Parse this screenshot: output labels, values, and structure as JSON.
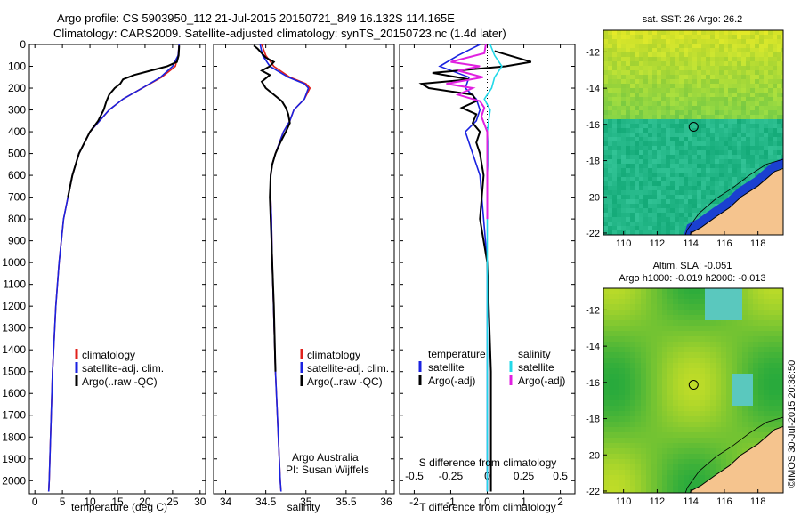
{
  "header": {
    "line1": "Argo profile: CS 5903950_112 21-Jul-2015 20150721_849 16.132S 114.165E",
    "line2": "Climatology: CARS2009. Satellite-adjusted climatology: synTS_20150723.nc (1.4d later)"
  },
  "colors": {
    "climatology": "#e0201b",
    "satellite": "#1a22e0",
    "argo": "#000000",
    "salinity_sat": "#22d8e8",
    "salinity_argo": "#e020e0",
    "land": "#f5c48e"
  },
  "chart_data": [
    {
      "type": "line",
      "name": "temperature-profile",
      "xlabel": "temperature (deg C)",
      "ylabel": "",
      "xlim": [
        -1,
        31
      ],
      "ylim": [
        2060,
        0
      ],
      "x_ticks": [
        "0",
        "5",
        "10",
        "15",
        "20",
        "25",
        "30"
      ],
      "y_ticks": [
        "0",
        "100",
        "200",
        "300",
        "400",
        "500",
        "600",
        "700",
        "800",
        "900",
        "1000",
        "1100",
        "1200",
        "1300",
        "1400",
        "1500",
        "1600",
        "1700",
        "1800",
        "1900",
        "2000"
      ],
      "legend": [
        "climatology",
        "satellite-adj. clim.",
        "Argo(..raw -QC)"
      ],
      "series": [
        {
          "name": "climatology",
          "depth": [
            0,
            50,
            100,
            150,
            200,
            250,
            300,
            400,
            500,
            600,
            800,
            1000,
            1200,
            1500,
            2000,
            2050
          ],
          "values": [
            26.2,
            26,
            25.5,
            23,
            19.5,
            16,
            13.5,
            10,
            8,
            6.8,
            5.2,
            4.4,
            3.8,
            3.2,
            2.6,
            2.5
          ]
        },
        {
          "name": "satellite-adj. clim.",
          "depth": [
            0,
            50,
            100,
            150,
            200,
            250,
            300,
            400,
            500,
            600,
            800,
            1000,
            1200,
            1500,
            2000,
            2050
          ],
          "values": [
            26.2,
            26,
            25,
            22.8,
            19.5,
            16,
            13.5,
            10,
            8,
            6.8,
            5.2,
            4.4,
            3.8,
            3.2,
            2.6,
            2.5
          ]
        },
        {
          "name": "Argo",
          "depth": [
            5,
            50,
            80,
            100,
            120,
            140,
            160,
            180,
            200,
            230,
            260,
            300,
            350,
            400,
            450,
            500,
            600,
            700
          ],
          "values": [
            26.2,
            26.1,
            25.8,
            24,
            21,
            18,
            16,
            15.5,
            14.5,
            13.5,
            13,
            12.5,
            11.5,
            10,
            9,
            8,
            6.8,
            6
          ]
        }
      ]
    },
    {
      "type": "line",
      "name": "salinity-profile",
      "xlabel": "salinity",
      "xlim": [
        33.85,
        36.1
      ],
      "ylim": [
        2060,
        0
      ],
      "x_ticks": [
        "34",
        "34.5",
        "35",
        "35.5",
        "36"
      ],
      "legend": [
        "climatology",
        "satellite-adj. clim.",
        "Argo(..raw -QC)"
      ],
      "annotations": [
        "Argo Australia",
        "PI: Susan Wijffels"
      ],
      "series": [
        {
          "name": "climatology",
          "depth": [
            0,
            50,
            100,
            150,
            180,
            200,
            250,
            300,
            350,
            400,
            450,
            500,
            550,
            600,
            700,
            800,
            1000,
            1500,
            2000,
            2050
          ],
          "values": [
            34.45,
            34.5,
            34.6,
            34.8,
            35,
            35.05,
            34.98,
            34.85,
            34.8,
            34.72,
            34.67,
            34.62,
            34.58,
            34.56,
            34.56,
            34.57,
            34.58,
            34.62,
            34.68,
            34.69
          ]
        },
        {
          "name": "satellite-adj. clim.",
          "depth": [
            0,
            50,
            100,
            150,
            180,
            200,
            250,
            300,
            350,
            400,
            450,
            500,
            550,
            600,
            700,
            800,
            1000,
            1500,
            2000,
            2050
          ],
          "values": [
            34.43,
            34.46,
            34.55,
            34.78,
            34.98,
            35.03,
            34.98,
            34.85,
            34.8,
            34.72,
            34.67,
            34.62,
            34.58,
            34.56,
            34.56,
            34.57,
            34.58,
            34.62,
            34.68,
            34.69
          ]
        },
        {
          "name": "Argo",
          "depth": [
            5,
            20,
            40,
            60,
            80,
            100,
            120,
            140,
            170,
            200,
            230,
            260,
            290,
            320,
            360,
            400,
            450,
            500,
            550,
            600,
            700,
            800,
            1000,
            1200,
            1500
          ],
          "values": [
            34.35,
            34.4,
            34.45,
            34.5,
            34.6,
            34.55,
            34.45,
            34.55,
            34.45,
            34.5,
            34.6,
            34.7,
            34.75,
            34.78,
            34.8,
            34.75,
            34.68,
            34.62,
            34.58,
            34.56,
            34.55,
            34.56,
            34.58,
            34.6,
            34.62
          ]
        }
      ]
    },
    {
      "type": "line",
      "name": "difference-profile",
      "xlabel": "T difference from climatology",
      "xlabel_top": "S difference from climatology",
      "xlim": [
        -2.4,
        2.4
      ],
      "ylim": [
        2060,
        0
      ],
      "x_ticks_T": [
        "-2",
        "-1",
        "0",
        "1",
        "2"
      ],
      "x_ticks_S": [
        "-0.5",
        "-0.25",
        "0",
        "0.25",
        "0.5"
      ],
      "legend_left": [
        "temperature",
        "satellite",
        "Argo(-adj)"
      ],
      "legend_right": [
        "salinity",
        "satellite",
        "Argo(-adj)"
      ],
      "series": [
        {
          "name": "T satellite",
          "depth": [
            0,
            50,
            100,
            150,
            200,
            250,
            300,
            350,
            400,
            500,
            600,
            800,
            1000,
            1500,
            2000,
            2050
          ],
          "values": [
            -0.2,
            -0.8,
            -1.3,
            -0.5,
            -0.6,
            -0.3,
            -0.2,
            -0.3,
            -0.6,
            -0.4,
            -0.2,
            -0.1,
            0,
            0,
            0,
            0
          ]
        },
        {
          "name": "T Argo",
          "depth": [
            30,
            60,
            80,
            100,
            130,
            160,
            180,
            200,
            230,
            260,
            290,
            320,
            360,
            400,
            450,
            500,
            600,
            800,
            1000,
            1500,
            2000,
            2050
          ],
          "values": [
            0.2,
            0.8,
            1.2,
            0.5,
            -1.5,
            -0.5,
            -1.8,
            -1.6,
            -0.4,
            -0.3,
            -0.7,
            -0.3,
            -0.4,
            -0.2,
            -0.3,
            -0.2,
            -0.1,
            -0.2,
            0,
            0.1,
            0.1,
            0.1
          ]
        },
        {
          "name": "S satellite",
          "depth": [
            0,
            50,
            100,
            150,
            200,
            250,
            300,
            400,
            500,
            600,
            800,
            1000,
            1500,
            2000,
            2050
          ],
          "values": [
            0.02,
            0.05,
            0.1,
            0.05,
            0.03,
            -0.02,
            0.02,
            0,
            0.01,
            0,
            0,
            0,
            0,
            0,
            0
          ]
        },
        {
          "name": "S Argo",
          "depth": [
            0,
            40,
            80,
            100,
            120,
            150,
            180,
            200,
            230,
            260,
            290,
            330,
            400,
            500,
            600,
            800
          ],
          "values": [
            -0.01,
            -0.02,
            -0.25,
            -0.05,
            -0.2,
            -0.03,
            -0.28,
            -0.1,
            -0.2,
            -0.05,
            -0.02,
            -0.04,
            0,
            0,
            0,
            0
          ]
        }
      ]
    },
    {
      "type": "heatmap",
      "name": "sst-map",
      "title": "sat. SST: 26 Argo: 26.2",
      "x_ticks": [
        "110",
        "112",
        "114",
        "116",
        "118"
      ],
      "y_ticks": [
        "-12",
        "-14",
        "-16",
        "-18",
        "-20",
        "-22"
      ],
      "xlim": [
        108.8,
        119.5
      ],
      "ylim": [
        -22.1,
        -10.8
      ],
      "marker": {
        "lon": 114.165,
        "lat": -16.132
      }
    },
    {
      "type": "heatmap",
      "name": "sla-map",
      "title1": "Altim. SLA: -0.051",
      "title2": "Argo h1000: -0.019 h2000: -0.013",
      "x_ticks": [
        "110",
        "112",
        "114",
        "116",
        "118"
      ],
      "y_ticks": [
        "-12",
        "-14",
        "-16",
        "-18",
        "-20",
        "-22"
      ],
      "xlim": [
        108.8,
        119.5
      ],
      "ylim": [
        -22.1,
        -10.8
      ],
      "marker": {
        "lon": 114.165,
        "lat": -16.132
      }
    }
  ],
  "credit": "©IMOS 30-Jul-2015 20:38:50"
}
